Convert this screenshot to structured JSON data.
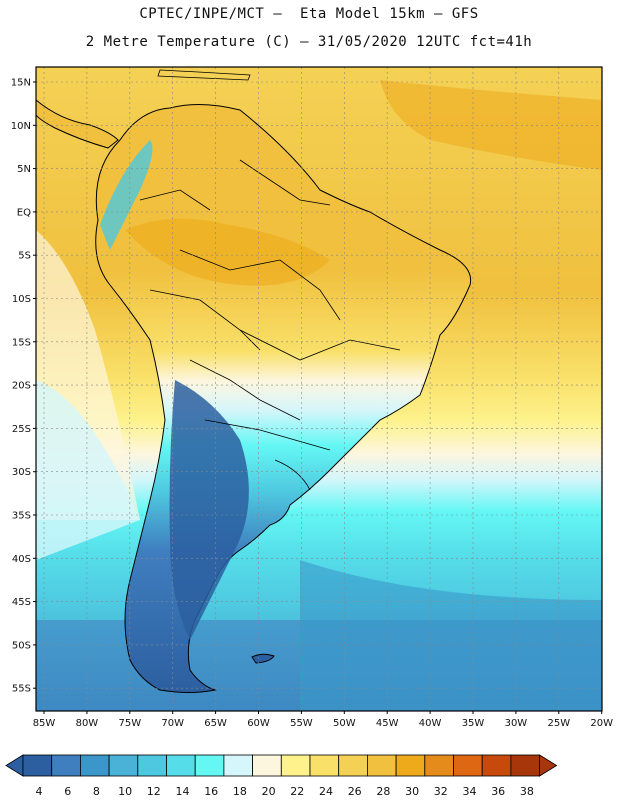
{
  "title_line1": "CPTEC/INPE/MCT –  Eta Model 15km – GFS",
  "title_line2": "2 Metre Temperature (C) – 31/05/2020 12UTC fct=41h",
  "lat_labels": [
    "15N",
    "10N",
    "5N",
    "EQ",
    "5S",
    "10S",
    "15S",
    "20S",
    "25S",
    "30S",
    "35S",
    "40S",
    "45S",
    "50S",
    "55S"
  ],
  "lat_values": [
    15,
    10,
    5,
    0,
    -5,
    -10,
    -15,
    -20,
    -25,
    -30,
    -35,
    -40,
    -45,
    -50,
    -55
  ],
  "lon_labels": [
    "85W",
    "80W",
    "75W",
    "70W",
    "65W",
    "60W",
    "55W",
    "50W",
    "45W",
    "40W",
    "35W",
    "30W",
    "25W",
    "20W"
  ],
  "lon_values": [
    -85,
    -80,
    -75,
    -70,
    -65,
    -60,
    -55,
    -50,
    -45,
    -40,
    -35,
    -30,
    -25,
    -20
  ],
  "colorbar": {
    "values": [
      4,
      6,
      8,
      10,
      12,
      14,
      16,
      18,
      20,
      22,
      24,
      26,
      28,
      30,
      32,
      34,
      36,
      38
    ],
    "colors": [
      "#2c5fa0",
      "#3f7ebf",
      "#3b97c9",
      "#49b2d6",
      "#4ec8e0",
      "#55dde9",
      "#64f7f4",
      "#d5f6fb",
      "#fdf6de",
      "#fdf28c",
      "#f9e069",
      "#f4d155",
      "#f0c03e",
      "#efaa1b",
      "#e48b1c",
      "#dd6713",
      "#c74a0c",
      "#a7360b"
    ]
  }
}
